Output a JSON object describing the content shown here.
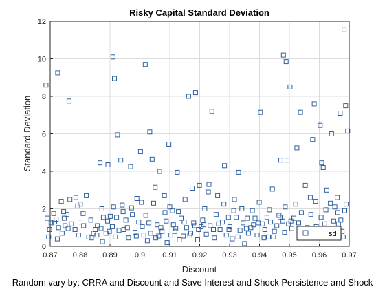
{
  "chart_data": {
    "type": "scatter",
    "title": "Risky Capital Standard Deviation",
    "xlabel": "Discount",
    "ylabel": "Standard Deviation",
    "caption": "Random vary by: CRRA and Discount and Save Interest and Shock Persistence and Shock",
    "xlim": [
      0.87,
      0.97
    ],
    "ylim": [
      0,
      12
    ],
    "xticks": [
      "0.87",
      "0.88",
      "0.89",
      "0.9",
      "0.91",
      "0.92",
      "0.93",
      "0.94",
      "0.95",
      "0.96",
      "0.97"
    ],
    "yticks": [
      "0",
      "2",
      "4",
      "6",
      "8",
      "10",
      "12"
    ],
    "grid": true,
    "legend": {
      "position": "bottom-right",
      "entries": [
        "sd"
      ]
    },
    "colors": {
      "marker": "#2f5f9e",
      "grid": "#dcdcdc",
      "axis": "#262626"
    },
    "series": [
      {
        "name": "sd",
        "marker": "square",
        "points": [
          [
            0.8686,
            8.6
          ],
          [
            0.8725,
            9.25
          ],
          [
            0.8756,
            1.7
          ],
          [
            0.8763,
            7.75
          ],
          [
            0.8703,
            1.25
          ],
          [
            0.8712,
            1.75
          ],
          [
            0.8724,
            0.4
          ],
          [
            0.8737,
            2.4
          ],
          [
            0.875,
            1.1
          ],
          [
            0.8766,
            2.5
          ],
          [
            0.8786,
            2.6
          ],
          [
            0.8801,
            2.25
          ],
          [
            0.8821,
            2.7
          ],
          [
            0.8836,
            1.4
          ],
          [
            0.8851,
            0.9
          ],
          [
            0.8867,
            4.45
          ],
          [
            0.8878,
            1.55
          ],
          [
            0.8893,
            4.35
          ],
          [
            0.891,
            10.1
          ],
          [
            0.8915,
            8.95
          ],
          [
            0.8925,
            5.95
          ],
          [
            0.8936,
            4.6
          ],
          [
            0.8947,
            0.9
          ],
          [
            0.8969,
            4.25
          ],
          [
            0.899,
            2.55
          ],
          [
            0.9002,
            5.05
          ],
          [
            0.9018,
            9.7
          ],
          [
            0.9033,
            6.1
          ],
          [
            0.9041,
            4.65
          ],
          [
            0.9051,
            3.15
          ],
          [
            0.9066,
            4.0
          ],
          [
            0.9082,
            2.7
          ],
          [
            0.9097,
            5.45
          ],
          [
            0.9112,
            1.15
          ],
          [
            0.9125,
            3.95
          ],
          [
            0.9148,
            1.3
          ],
          [
            0.9163,
            8.0
          ],
          [
            0.9175,
            3.1
          ],
          [
            0.9186,
            8.2
          ],
          [
            0.9199,
            3.25
          ],
          [
            0.9217,
            2.0
          ],
          [
            0.9231,
            3.3
          ],
          [
            0.9241,
            7.2
          ],
          [
            0.926,
            2.7
          ],
          [
            0.9283,
            4.3
          ],
          [
            0.9296,
            1.55
          ],
          [
            0.9316,
            2.5
          ],
          [
            0.933,
            3.95
          ],
          [
            0.9356,
            0.95
          ],
          [
            0.9376,
            1.9
          ],
          [
            0.9396,
            1.25
          ],
          [
            0.9403,
            7.15
          ],
          [
            0.9425,
            1.55
          ],
          [
            0.9443,
            3.05
          ],
          [
            0.9471,
            4.6
          ],
          [
            0.948,
            10.2
          ],
          [
            0.9489,
            9.85
          ],
          [
            0.9492,
            4.6
          ],
          [
            0.9502,
            8.5
          ],
          [
            0.9525,
            5.25
          ],
          [
            0.9537,
            7.15
          ],
          [
            0.9553,
            3.25
          ],
          [
            0.957,
            2.6
          ],
          [
            0.9578,
            5.7
          ],
          [
            0.9583,
            7.6
          ],
          [
            0.9603,
            6.45
          ],
          [
            0.9608,
            4.45
          ],
          [
            0.9613,
            4.2
          ],
          [
            0.9625,
            3.0
          ],
          [
            0.9641,
            6.0
          ],
          [
            0.9662,
            1.8
          ],
          [
            0.9664,
            1.2
          ],
          [
            0.967,
            7.1
          ],
          [
            0.9683,
            11.55
          ],
          [
            0.9688,
            7.5
          ],
          [
            0.9695,
            6.15
          ],
          [
            0.969,
            2.25
          ],
          [
            0.9676,
            0.8
          ],
          [
            0.869,
            1.5
          ],
          [
            0.8698,
            0.9
          ],
          [
            0.8715,
            1.3
          ],
          [
            0.8728,
            1.0
          ],
          [
            0.874,
            0.7
          ],
          [
            0.8747,
            1.5
          ],
          [
            0.8771,
            1.2
          ],
          [
            0.8783,
            0.9
          ],
          [
            0.8795,
            0.6
          ],
          [
            0.88,
            1.3
          ],
          [
            0.8812,
            1.1
          ],
          [
            0.8829,
            0.5
          ],
          [
            0.8845,
            0.7
          ],
          [
            0.8858,
            1.1
          ],
          [
            0.887,
            0.95
          ],
          [
            0.8875,
            0.25
          ],
          [
            0.8887,
            0.7
          ],
          [
            0.8892,
            1.35
          ],
          [
            0.8901,
            1.6
          ],
          [
            0.8908,
            1.05
          ],
          [
            0.8918,
            0.5
          ],
          [
            0.893,
            0.85
          ],
          [
            0.8941,
            2.2
          ],
          [
            0.8953,
            1.4
          ],
          [
            0.8962,
            0.45
          ],
          [
            0.8975,
            1.7
          ],
          [
            0.8984,
            0.75
          ],
          [
            0.8996,
            1.3
          ],
          [
            0.9008,
            1.05
          ],
          [
            0.9013,
            0.6
          ],
          [
            0.9025,
            0.3
          ],
          [
            0.903,
            1.25
          ],
          [
            0.9046,
            2.3
          ],
          [
            0.9058,
            1.15
          ],
          [
            0.9063,
            0.55
          ],
          [
            0.9074,
            0.8
          ],
          [
            0.9088,
            1.35
          ],
          [
            0.9091,
            0.2
          ],
          [
            0.9103,
            0.6
          ],
          [
            0.9109,
            1.9
          ],
          [
            0.912,
            0.95
          ],
          [
            0.9132,
            0.35
          ],
          [
            0.9138,
            1.5
          ],
          [
            0.9145,
            0.55
          ],
          [
            0.9156,
            1.0
          ],
          [
            0.917,
            0.7
          ],
          [
            0.918,
            1.25
          ],
          [
            0.9193,
            0.35
          ],
          [
            0.9205,
            1.05
          ],
          [
            0.921,
            1.4
          ],
          [
            0.9222,
            0.65
          ],
          [
            0.9235,
            1.1
          ],
          [
            0.9249,
            0.45
          ],
          [
            0.9255,
            1.7
          ],
          [
            0.9268,
            0.9
          ],
          [
            0.9276,
            1.3
          ],
          [
            0.9289,
            0.6
          ],
          [
            0.9301,
            1.05
          ],
          [
            0.9309,
            0.4
          ],
          [
            0.9322,
            1.55
          ],
          [
            0.9335,
            0.85
          ],
          [
            0.9345,
            1.25
          ],
          [
            0.935,
            0.15
          ],
          [
            0.9363,
            0.7
          ],
          [
            0.9371,
            1.0
          ],
          [
            0.9385,
            1.5
          ],
          [
            0.9392,
            0.6
          ],
          [
            0.941,
            1.2
          ],
          [
            0.9418,
            0.9
          ],
          [
            0.943,
            0.5
          ],
          [
            0.9437,
            1.3
          ],
          [
            0.945,
            0.8
          ],
          [
            0.9458,
            1.1
          ],
          [
            0.9465,
            1.65
          ],
          [
            0.9478,
            1.35
          ],
          [
            0.9484,
            0.75
          ],
          [
            0.9497,
            1.2
          ],
          [
            0.9508,
            0.95
          ],
          [
            0.9515,
            1.5
          ],
          [
            0.9531,
            1.25
          ],
          [
            0.9545,
            0.75
          ],
          [
            0.956,
            1.0
          ],
          [
            0.9567,
            0.6
          ],
          [
            0.9575,
            0.8
          ],
          [
            0.959,
            1.05
          ],
          [
            0.9596,
            0.55
          ],
          [
            0.9618,
            1.2
          ],
          [
            0.9632,
            0.7
          ],
          [
            0.9648,
            1.35
          ],
          [
            0.9655,
            0.95
          ],
          [
            0.9672,
            1.4
          ],
          [
            0.968,
            0.5
          ],
          [
            0.8695,
            0.5
          ],
          [
            0.872,
            1.45
          ],
          [
            0.8745,
            1.85
          ],
          [
            0.876,
            0.95
          ],
          [
            0.8792,
            2.15
          ],
          [
            0.881,
            1.75
          ],
          [
            0.8838,
            0.45
          ],
          [
            0.8856,
            0.6
          ],
          [
            0.8873,
            2.0
          ],
          [
            0.8898,
            0.8
          ],
          [
            0.8912,
            2.1
          ],
          [
            0.8922,
            1.55
          ],
          [
            0.8944,
            1.85
          ],
          [
            0.8958,
            1.0
          ],
          [
            0.8972,
            2.05
          ],
          [
            0.8988,
            0.55
          ],
          [
            0.9005,
            2.35
          ],
          [
            0.902,
            1.65
          ],
          [
            0.9036,
            0.7
          ],
          [
            0.9053,
            0.45
          ],
          [
            0.907,
            1.0
          ],
          [
            0.9084,
            1.8
          ],
          [
            0.91,
            2.1
          ],
          [
            0.9117,
            0.8
          ],
          [
            0.9129,
            1.85
          ],
          [
            0.9151,
            2.5
          ],
          [
            0.9167,
            0.6
          ],
          [
            0.9184,
            1.1
          ],
          [
            0.9196,
            0.9
          ],
          [
            0.9214,
            1.15
          ],
          [
            0.9229,
            2.9
          ],
          [
            0.9246,
            0.9
          ],
          [
            0.9263,
            1.2
          ],
          [
            0.9281,
            2.25
          ],
          [
            0.9298,
            0.9
          ],
          [
            0.9314,
            1.9
          ],
          [
            0.9328,
            0.5
          ],
          [
            0.9341,
            2.0
          ],
          [
            0.9359,
            1.5
          ],
          [
            0.938,
            1.15
          ],
          [
            0.9399,
            2.35
          ],
          [
            0.9415,
            0.45
          ],
          [
            0.9433,
            1.95
          ],
          [
            0.9447,
            0.5
          ],
          [
            0.9469,
            1.55
          ],
          [
            0.9486,
            2.1
          ],
          [
            0.9505,
            1.35
          ],
          [
            0.9521,
            2.25
          ],
          [
            0.954,
            1.8
          ],
          [
            0.9555,
            0.9
          ],
          [
            0.9572,
            1.7
          ],
          [
            0.9588,
            2.4
          ],
          [
            0.9606,
            1.55
          ],
          [
            0.9622,
            1.95
          ],
          [
            0.9637,
            2.3
          ],
          [
            0.9652,
            2.1
          ],
          [
            0.966,
            2.6
          ],
          [
            0.9685,
            1.9
          ]
        ]
      }
    ]
  }
}
